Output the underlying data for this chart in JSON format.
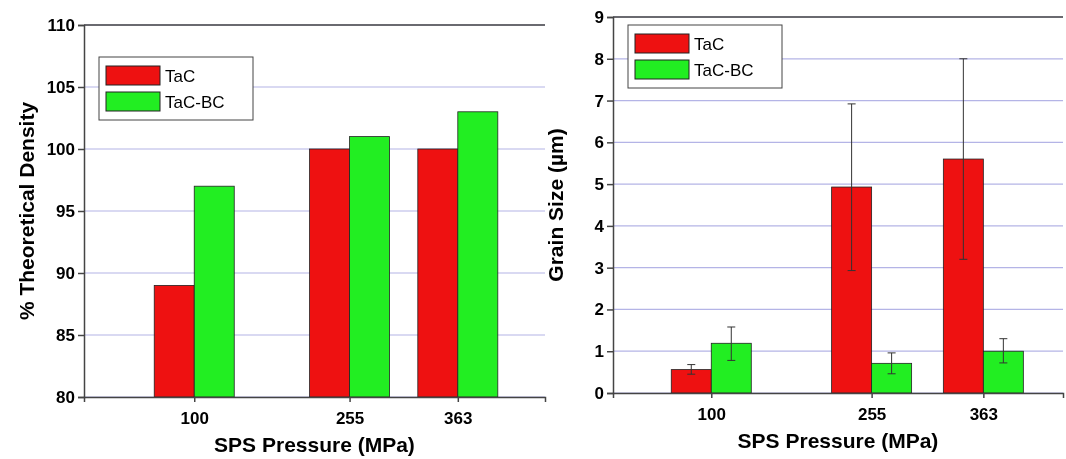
{
  "chart_data": [
    {
      "type": "bar",
      "xlabel": "SPS Pressure (MPa)",
      "ylabel": "% Theoretical Density",
      "x": [
        100,
        255,
        363
      ],
      "xlim": [
        -10,
        450
      ],
      "xticks": [
        100,
        255,
        363
      ],
      "ylim": [
        80,
        110
      ],
      "yticks": [
        80,
        85,
        90,
        95,
        100,
        105,
        110
      ],
      "grid": "y",
      "legend": "top left",
      "series": [
        {
          "name": "TaC",
          "color": "#ee1111",
          "values": [
            89,
            100,
            100
          ]
        },
        {
          "name": "TaC-BC",
          "color": "#22ee22",
          "values": [
            97,
            101,
            103
          ]
        }
      ]
    },
    {
      "type": "bar",
      "xlabel": "SPS Pressure (MPa)",
      "ylabel": "Grain Size (µm)",
      "x": [
        100,
        255,
        363
      ],
      "xlim": [
        5,
        440
      ],
      "xticks": [
        100,
        255,
        363
      ],
      "ylim": [
        0,
        9
      ],
      "yticks": [
        0,
        1,
        2,
        3,
        4,
        5,
        6,
        7,
        8,
        9
      ],
      "grid": "y",
      "legend": "top left",
      "series": [
        {
          "name": "TaC",
          "color": "#ee1111",
          "values": [
            0.56,
            4.93,
            5.6
          ],
          "errors": [
            [
              0.45,
              0.68
            ],
            [
              2.93,
              6.92
            ],
            [
              3.2,
              8.0
            ]
          ]
        },
        {
          "name": "TaC-BC",
          "color": "#22ee22",
          "values": [
            1.19,
            0.71,
            1.0
          ],
          "errors": [
            [
              0.78,
              1.58
            ],
            [
              0.46,
              0.96
            ],
            [
              0.72,
              1.3
            ]
          ]
        }
      ]
    }
  ]
}
